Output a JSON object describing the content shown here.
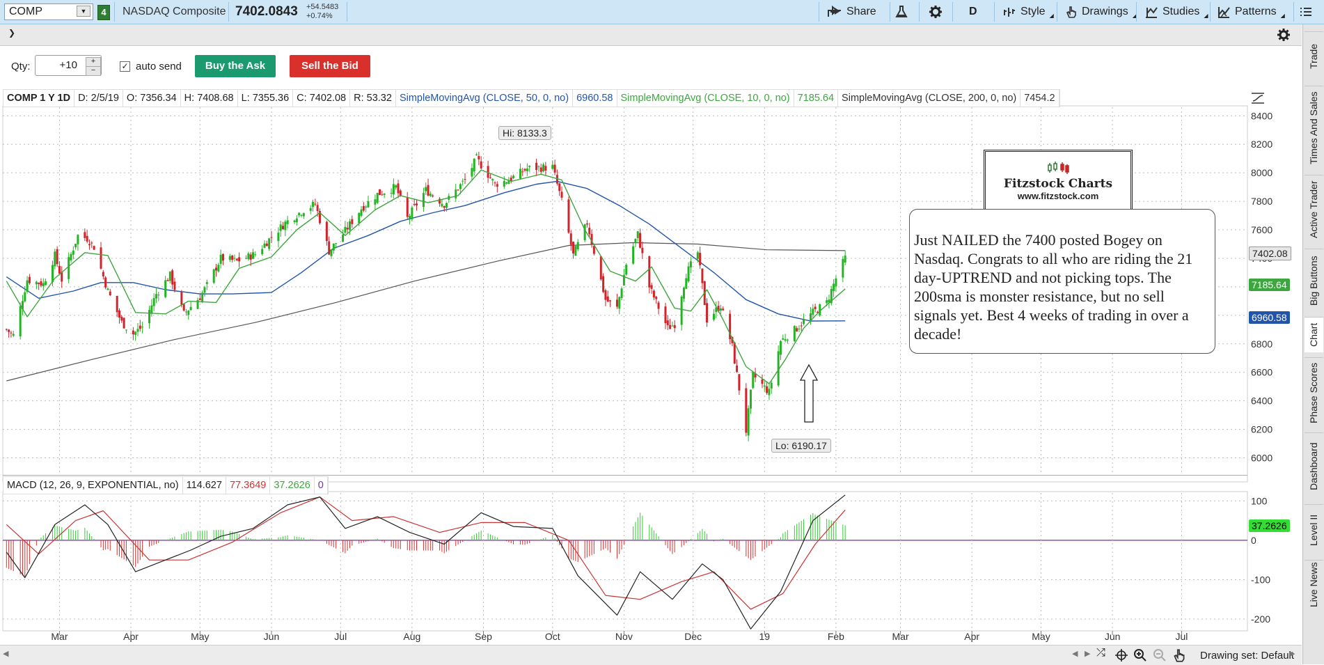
{
  "toolbar": {
    "symbol": "COMP",
    "link_number": "4",
    "instrument_name": "NASDAQ Composite",
    "last_price": "7402.0843",
    "net_change": "+54.5483",
    "pct_change": "+0.74%",
    "share_label": "Share",
    "timeframe_label": "D",
    "style_label": "Style",
    "drawings_label": "Drawings",
    "studies_label": "Studies",
    "patterns_label": "Patterns"
  },
  "order": {
    "qty_label": "Qty:",
    "qty_value": "+10",
    "auto_send_label": "auto send",
    "auto_send_checked": true,
    "buy_label": "Buy the Ask",
    "sell_label": "Sell the Bid"
  },
  "study_header": {
    "symbol_period": "COMP 1 Y 1D",
    "date": "D: 2/5/19",
    "open": "O: 7356.34",
    "high": "H: 7408.68",
    "low": "L: 7355.36",
    "close": "C: 7402.08",
    "range": "R: 53.32",
    "sma50_label": "SimpleMovingAvg (CLOSE, 50, 0, no)",
    "sma50_value": "6960.58",
    "sma10_label": "SimpleMovingAvg (CLOSE, 10, 0, no)",
    "sma10_value": "7185.64",
    "sma200_label": "SimpleMovingAvg (CLOSE, 200, 0, no)",
    "sma200_value": "7454.2"
  },
  "macd_header": {
    "label": "MACD (12, 26, 9, EXPONENTIAL, no)",
    "value": "114.627",
    "avg": "77.3649",
    "diff": "37.2626",
    "zero": "0"
  },
  "annotations": {
    "hi_label": "Hi: 8133.3",
    "lo_label": "Lo: 6190.17",
    "logo_title": "Fitzstock Charts",
    "logo_url": "www.fitzstock.com",
    "comment": "Just NAILED the 7400 posted Bogey on Nasdaq.  Congrats to all who are riding the 21 day-UPTREND and not picking tops.  The 200sma is monster resistance, but no sell signals yet.  Best 4 weeks of trading in over a decade!"
  },
  "price_tags": {
    "close": "7402.08",
    "sma10": "7185.64",
    "sma50": "6960.58",
    "macd_diff": "37.2626"
  },
  "side_tabs": [
    "Trade",
    "Times And Sales",
    "Active Trader",
    "Big Buttons",
    "Chart",
    "Phase Scores",
    "Dashboard",
    "Level II",
    "Live News"
  ],
  "bottom": {
    "drawing_set": "Drawing set: Default"
  },
  "colors": {
    "up_candle": "#23b423",
    "down_candle": "#d2222a",
    "sma50": "#2255aa",
    "sma10": "#3ea63e",
    "sma200": "#555555",
    "macd_value": "#222222",
    "macd_avg": "#cc3333",
    "macd_zero": "#7a2fa0"
  },
  "chart_data": {
    "type": "candlestick",
    "x_tick_labels": [
      "Mar",
      "Apr",
      "May",
      "Jun",
      "Jul",
      "Aug",
      "Sep",
      "Oct",
      "Nov",
      "Dec",
      "19",
      "Feb",
      "Mar",
      "Apr",
      "May",
      "Jun",
      "Jul"
    ],
    "price_axis": {
      "ticks": [
        8400,
        8200,
        8000,
        7800,
        7600,
        7400,
        7200,
        7000,
        6800,
        6600,
        6400,
        6200,
        6000
      ],
      "ylim": [
        5900,
        8460
      ]
    },
    "macd_axis": {
      "ticks": [
        100,
        0,
        -100,
        -200
      ],
      "ylim": [
        -230,
        120
      ]
    },
    "close_path": [
      {
        "d": "2018-02-06",
        "v": 6900
      },
      {
        "d": "2018-02-09",
        "v": 6860
      },
      {
        "d": "2018-02-15",
        "v": 7250
      },
      {
        "d": "2018-02-22",
        "v": 7220
      },
      {
        "d": "2018-02-27",
        "v": 7420
      },
      {
        "d": "2018-03-02",
        "v": 7250
      },
      {
        "d": "2018-03-09",
        "v": 7560
      },
      {
        "d": "2018-03-13",
        "v": 7540
      },
      {
        "d": "2018-03-16",
        "v": 7480
      },
      {
        "d": "2018-03-22",
        "v": 7170
      },
      {
        "d": "2018-03-28",
        "v": 6950
      },
      {
        "d": "2018-04-02",
        "v": 6870
      },
      {
        "d": "2018-04-06",
        "v": 6920
      },
      {
        "d": "2018-04-12",
        "v": 7150
      },
      {
        "d": "2018-04-18",
        "v": 7280
      },
      {
        "d": "2018-04-24",
        "v": 7010
      },
      {
        "d": "2018-05-01",
        "v": 7130
      },
      {
        "d": "2018-05-04",
        "v": 7210
      },
      {
        "d": "2018-05-10",
        "v": 7400
      },
      {
        "d": "2018-05-17",
        "v": 7380
      },
      {
        "d": "2018-05-25",
        "v": 7430
      },
      {
        "d": "2018-06-01",
        "v": 7550
      },
      {
        "d": "2018-06-07",
        "v": 7650
      },
      {
        "d": "2018-06-15",
        "v": 7740
      },
      {
        "d": "2018-06-20",
        "v": 7780
      },
      {
        "d": "2018-06-26",
        "v": 7450
      },
      {
        "d": "2018-07-02",
        "v": 7570
      },
      {
        "d": "2018-07-10",
        "v": 7750
      },
      {
        "d": "2018-07-17",
        "v": 7850
      },
      {
        "d": "2018-07-25",
        "v": 7900
      },
      {
        "d": "2018-07-30",
        "v": 7680
      },
      {
        "d": "2018-08-07",
        "v": 7880
      },
      {
        "d": "2018-08-15",
        "v": 7780
      },
      {
        "d": "2018-08-24",
        "v": 7950
      },
      {
        "d": "2018-08-29",
        "v": 8100
      },
      {
        "d": "2018-09-06",
        "v": 7920
      },
      {
        "d": "2018-09-12",
        "v": 7950
      },
      {
        "d": "2018-09-20",
        "v": 8030
      },
      {
        "d": "2018-10-01",
        "v": 8040
      },
      {
        "d": "2018-10-05",
        "v": 7800
      },
      {
        "d": "2018-10-10",
        "v": 7420
      },
      {
        "d": "2018-10-16",
        "v": 7650
      },
      {
        "d": "2018-10-24",
        "v": 7110
      },
      {
        "d": "2018-10-29",
        "v": 7050
      },
      {
        "d": "2018-11-02",
        "v": 7360
      },
      {
        "d": "2018-11-07",
        "v": 7570
      },
      {
        "d": "2018-11-12",
        "v": 7200
      },
      {
        "d": "2018-11-20",
        "v": 6910
      },
      {
        "d": "2018-11-23",
        "v": 6940
      },
      {
        "d": "2018-11-28",
        "v": 7290
      },
      {
        "d": "2018-12-03",
        "v": 7440
      },
      {
        "d": "2018-12-07",
        "v": 6970
      },
      {
        "d": "2018-12-13",
        "v": 7070
      },
      {
        "d": "2018-12-18",
        "v": 6780
      },
      {
        "d": "2018-12-24",
        "v": 6190
      },
      {
        "d": "2018-12-27",
        "v": 6580
      },
      {
        "d": "2019-01-03",
        "v": 6460
      },
      {
        "d": "2019-01-08",
        "v": 6820
      },
      {
        "d": "2019-01-15",
        "v": 6910
      },
      {
        "d": "2019-01-22",
        "v": 7020
      },
      {
        "d": "2019-01-28",
        "v": 7090
      },
      {
        "d": "2019-02-01",
        "v": 7260
      },
      {
        "d": "2019-02-05",
        "v": 7402
      }
    ],
    "sma10_path": [
      {
        "d": "2018-02-06",
        "v": 7240
      },
      {
        "d": "2018-02-15",
        "v": 6990
      },
      {
        "d": "2018-02-27",
        "v": 7260
      },
      {
        "d": "2018-03-12",
        "v": 7440
      },
      {
        "d": "2018-03-22",
        "v": 7420
      },
      {
        "d": "2018-04-03",
        "v": 7020
      },
      {
        "d": "2018-04-16",
        "v": 7010
      },
      {
        "d": "2018-04-26",
        "v": 7100
      },
      {
        "d": "2018-05-08",
        "v": 7090
      },
      {
        "d": "2018-05-18",
        "v": 7330
      },
      {
        "d": "2018-06-01",
        "v": 7410
      },
      {
        "d": "2018-06-12",
        "v": 7600
      },
      {
        "d": "2018-06-22",
        "v": 7720
      },
      {
        "d": "2018-07-03",
        "v": 7560
      },
      {
        "d": "2018-07-16",
        "v": 7740
      },
      {
        "d": "2018-07-27",
        "v": 7840
      },
      {
        "d": "2018-08-08",
        "v": 7790
      },
      {
        "d": "2018-08-21",
        "v": 7840
      },
      {
        "d": "2018-08-31",
        "v": 8020
      },
      {
        "d": "2018-09-13",
        "v": 7940
      },
      {
        "d": "2018-09-26",
        "v": 7990
      },
      {
        "d": "2018-10-05",
        "v": 7950
      },
      {
        "d": "2018-10-15",
        "v": 7600
      },
      {
        "d": "2018-10-26",
        "v": 7310
      },
      {
        "d": "2018-11-06",
        "v": 7240
      },
      {
        "d": "2018-11-13",
        "v": 7340
      },
      {
        "d": "2018-11-23",
        "v": 7050
      },
      {
        "d": "2018-11-30",
        "v": 7030
      },
      {
        "d": "2018-12-07",
        "v": 7180
      },
      {
        "d": "2018-12-14",
        "v": 6970
      },
      {
        "d": "2018-12-24",
        "v": 6640
      },
      {
        "d": "2019-01-03",
        "v": 6520
      },
      {
        "d": "2019-01-10",
        "v": 6690
      },
      {
        "d": "2019-01-18",
        "v": 6910
      },
      {
        "d": "2019-01-25",
        "v": 7030
      },
      {
        "d": "2019-02-05",
        "v": 7186
      }
    ],
    "sma50_path": [
      {
        "d": "2018-02-06",
        "v": 7270
      },
      {
        "d": "2018-02-20",
        "v": 7120
      },
      {
        "d": "2018-03-07",
        "v": 7170
      },
      {
        "d": "2018-03-19",
        "v": 7230
      },
      {
        "d": "2018-04-02",
        "v": 7230
      },
      {
        "d": "2018-04-16",
        "v": 7180
      },
      {
        "d": "2018-05-01",
        "v": 7150
      },
      {
        "d": "2018-05-15",
        "v": 7150
      },
      {
        "d": "2018-06-01",
        "v": 7160
      },
      {
        "d": "2018-06-14",
        "v": 7300
      },
      {
        "d": "2018-06-28",
        "v": 7470
      },
      {
        "d": "2018-07-13",
        "v": 7560
      },
      {
        "d": "2018-07-27",
        "v": 7660
      },
      {
        "d": "2018-08-10",
        "v": 7720
      },
      {
        "d": "2018-08-24",
        "v": 7770
      },
      {
        "d": "2018-09-10",
        "v": 7860
      },
      {
        "d": "2018-09-24",
        "v": 7920
      },
      {
        "d": "2018-10-03",
        "v": 7940
      },
      {
        "d": "2018-10-16",
        "v": 7890
      },
      {
        "d": "2018-10-30",
        "v": 7770
      },
      {
        "d": "2018-11-12",
        "v": 7640
      },
      {
        "d": "2018-11-26",
        "v": 7470
      },
      {
        "d": "2018-12-10",
        "v": 7300
      },
      {
        "d": "2018-12-24",
        "v": 7110
      },
      {
        "d": "2019-01-07",
        "v": 7010
      },
      {
        "d": "2019-01-21",
        "v": 6960
      },
      {
        "d": "2019-02-05",
        "v": 6961
      }
    ],
    "sma200_path": [
      {
        "d": "2018-02-06",
        "v": 6540
      },
      {
        "d": "2018-03-15",
        "v": 6690
      },
      {
        "d": "2018-04-20",
        "v": 6830
      },
      {
        "d": "2018-05-25",
        "v": 6950
      },
      {
        "d": "2018-06-29",
        "v": 7090
      },
      {
        "d": "2018-08-02",
        "v": 7240
      },
      {
        "d": "2018-09-07",
        "v": 7380
      },
      {
        "d": "2018-10-08",
        "v": 7490
      },
      {
        "d": "2018-11-05",
        "v": 7510
      },
      {
        "d": "2018-12-03",
        "v": 7500
      },
      {
        "d": "2019-01-02",
        "v": 7460
      },
      {
        "d": "2019-02-05",
        "v": 7454
      }
    ],
    "macd_path": [
      {
        "d": "2018-02-06",
        "v": -30
      },
      {
        "d": "2018-02-14",
        "v": -95
      },
      {
        "d": "2018-02-27",
        "v": 40
      },
      {
        "d": "2018-03-12",
        "v": 90
      },
      {
        "d": "2018-03-22",
        "v": 40
      },
      {
        "d": "2018-04-03",
        "v": -80
      },
      {
        "d": "2018-04-16",
        "v": -50
      },
      {
        "d": "2018-04-27",
        "v": -25
      },
      {
        "d": "2018-05-10",
        "v": 10
      },
      {
        "d": "2018-05-24",
        "v": 30
      },
      {
        "d": "2018-06-08",
        "v": 90
      },
      {
        "d": "2018-06-22",
        "v": 110
      },
      {
        "d": "2018-07-03",
        "v": 30
      },
      {
        "d": "2018-07-17",
        "v": 60
      },
      {
        "d": "2018-07-31",
        "v": 20
      },
      {
        "d": "2018-08-15",
        "v": -10
      },
      {
        "d": "2018-08-31",
        "v": 70
      },
      {
        "d": "2018-09-14",
        "v": 35
      },
      {
        "d": "2018-10-01",
        "v": 30
      },
      {
        "d": "2018-10-12",
        "v": -90
      },
      {
        "d": "2018-10-29",
        "v": -190
      },
      {
        "d": "2018-11-08",
        "v": -80
      },
      {
        "d": "2018-11-22",
        "v": -150
      },
      {
        "d": "2018-12-05",
        "v": -60
      },
      {
        "d": "2018-12-14",
        "v": -100
      },
      {
        "d": "2018-12-26",
        "v": -225
      },
      {
        "d": "2019-01-08",
        "v": -130
      },
      {
        "d": "2019-01-22",
        "v": 50
      },
      {
        "d": "2019-02-05",
        "v": 115
      }
    ],
    "macd_avg_path": [
      {
        "d": "2018-02-06",
        "v": 40
      },
      {
        "d": "2018-02-20",
        "v": -35
      },
      {
        "d": "2018-03-08",
        "v": 50
      },
      {
        "d": "2018-03-20",
        "v": 75
      },
      {
        "d": "2018-04-09",
        "v": -50
      },
      {
        "d": "2018-04-26",
        "v": -50
      },
      {
        "d": "2018-05-15",
        "v": -5
      },
      {
        "d": "2018-06-05",
        "v": 70
      },
      {
        "d": "2018-06-22",
        "v": 110
      },
      {
        "d": "2018-07-06",
        "v": 50
      },
      {
        "d": "2018-07-24",
        "v": 60
      },
      {
        "d": "2018-08-13",
        "v": 20
      },
      {
        "d": "2018-08-31",
        "v": 45
      },
      {
        "d": "2018-09-19",
        "v": 45
      },
      {
        "d": "2018-10-08",
        "v": 0
      },
      {
        "d": "2018-10-24",
        "v": -140
      },
      {
        "d": "2018-11-08",
        "v": -150
      },
      {
        "d": "2018-11-26",
        "v": -105
      },
      {
        "d": "2018-12-10",
        "v": -80
      },
      {
        "d": "2018-12-26",
        "v": -175
      },
      {
        "d": "2019-01-09",
        "v": -135
      },
      {
        "d": "2019-01-23",
        "v": -10
      },
      {
        "d": "2019-02-05",
        "v": 77
      }
    ],
    "notes": "Daily candlesticks with 10/50/200 SMA overlays; MACD lower study with histogram. Candle OHLC series approximated from the visible price path."
  }
}
